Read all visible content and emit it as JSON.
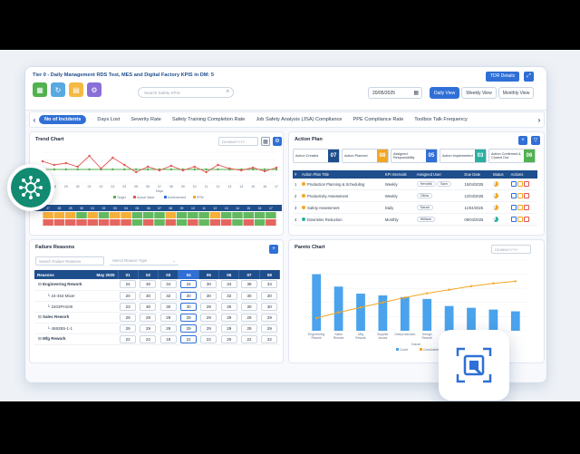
{
  "header": {
    "title": "Tier 0 - Daily Management RDS Test, MES and Digital Factory KPIS in DM: 5",
    "search_placeholder": "Search Safety KPIS",
    "date": "20/05/2025",
    "tdr_label": "TDR Details",
    "views": [
      "Daily View",
      "Weekly View",
      "Monthly View"
    ],
    "active_view": "Daily View",
    "quick_icons": [
      "grid-icon",
      "flow-icon",
      "document-icon",
      "gear-icon"
    ]
  },
  "kpi_tabs": [
    "No of Incidents",
    "Days Lost",
    "Severity Rate",
    "Safety Training Completion Rate",
    "Job Safety Analysis (JSA) Compliance",
    "PPE Compliance Rate",
    "Toolbox Talk Frequency"
  ],
  "trend": {
    "title": "Trend Chart",
    "date_placeholder": "DD/MM/YYYY",
    "x": [
      "27",
      "28",
      "29",
      "30",
      "01",
      "02",
      "03",
      "04",
      "05",
      "06",
      "07",
      "08",
      "09",
      "10",
      "11",
      "12",
      "13",
      "14",
      "15",
      "16",
      "17"
    ],
    "target": [
      15,
      15,
      15,
      15,
      15,
      15,
      15,
      15,
      15,
      15,
      15,
      15,
      15,
      15,
      15,
      15,
      15,
      15,
      15,
      15,
      15
    ],
    "actual": [
      24,
      20,
      22,
      18,
      30,
      16,
      28,
      20,
      12,
      18,
      14,
      19,
      14,
      18,
      12,
      20,
      16,
      14,
      17,
      13,
      17
    ],
    "legend": [
      "Target",
      "Actual Value",
      "Achievement",
      "PPM"
    ],
    "xlabel": "Days"
  },
  "action_plan": {
    "title": "Action Plan",
    "status_boxes": [
      {
        "label": "Action Created",
        "count": "07",
        "color": "#1f4e8c"
      },
      {
        "label": "Action Planned",
        "count": "08",
        "color": "#f5a623"
      },
      {
        "label": "Assigned Responsibility",
        "count": "05",
        "color": "#2f6fd6"
      },
      {
        "label": "Action Implemented",
        "count": "03",
        "color": "#2bb0a0"
      },
      {
        "label": "Action Confirmed & Closed Out",
        "count": "06",
        "color": "#52b14f"
      }
    ],
    "columns": [
      "#",
      "Action Plan Title",
      "KPI Intervals",
      "Assigned User",
      "Due Date",
      "Status",
      "Actions"
    ],
    "rows": [
      {
        "no": "1",
        "title": "Production Planning & Scheduling",
        "interval": "Weekly",
        "users": [
          "Hendrik",
          "Sam"
        ],
        "due": "15/04/2025",
        "color": "#f5a623"
      },
      {
        "no": "2",
        "title": "Productivity Assessment",
        "interval": "Weekly",
        "users": [
          "Olivia"
        ],
        "due": "12/04/2025",
        "color": "#f5a623"
      },
      {
        "no": "3",
        "title": "Safety Assessment",
        "interval": "Daily",
        "users": [
          "Sarah"
        ],
        "due": "11/04/2025",
        "color": "#f5a623"
      },
      {
        "no": "4",
        "title": "Downtime Reduction",
        "interval": "Monthly",
        "users": [
          "William"
        ],
        "due": "09/04/2025",
        "color": "#2bb0a0"
      }
    ]
  },
  "failure": {
    "title": "Failure Reasons",
    "search_placeholder": "Search Failure Reasons",
    "select_placeholder": "Select Reason Type",
    "header_label": "Reasons",
    "month": "May 2025",
    "days": [
      "01",
      "02",
      "03",
      "04",
      "05",
      "06",
      "07",
      "08"
    ],
    "rows": [
      {
        "label": "Engineering Rework",
        "values": [
          "24",
          "30",
          "34",
          "34",
          "30",
          "34",
          "38",
          "34"
        ]
      },
      {
        "label": "24-454 Mixer",
        "values": [
          "20",
          "30",
          "32",
          "30",
          "30",
          "32",
          "30",
          "30"
        ]
      },
      {
        "label": "2403PH100",
        "values": [
          "23",
          "30",
          "30",
          "30",
          "29",
          "30",
          "30",
          "30"
        ]
      },
      {
        "label": "Sales Rework",
        "values": [
          "29",
          "29",
          "29",
          "29",
          "29",
          "29",
          "29",
          "29"
        ]
      },
      {
        "label": "4692B5-1-1",
        "values": [
          "29",
          "29",
          "29",
          "29",
          "29",
          "29",
          "29",
          "29"
        ]
      },
      {
        "label": "Mfg Rework",
        "values": [
          "22",
          "22",
          "18",
          "22",
          "22",
          "20",
          "22",
          "22"
        ]
      }
    ]
  },
  "pareto": {
    "title": "Pareto Chart",
    "date_placeholder": "DD/MM/YYYY"
  },
  "chart_data": [
    {
      "type": "line",
      "x": [
        "27",
        "28",
        "29",
        "30",
        "01",
        "02",
        "03",
        "04",
        "05",
        "06",
        "07",
        "08",
        "09",
        "10",
        "11",
        "12",
        "13",
        "14",
        "15",
        "16",
        "17"
      ],
      "series": [
        {
          "name": "Target",
          "values": [
            15,
            15,
            15,
            15,
            15,
            15,
            15,
            15,
            15,
            15,
            15,
            15,
            15,
            15,
            15,
            15,
            15,
            15,
            15,
            15,
            15
          ]
        },
        {
          "name": "Actual Value",
          "values": [
            24,
            20,
            22,
            18,
            30,
            16,
            28,
            20,
            12,
            18,
            14,
            19,
            14,
            18,
            12,
            20,
            16,
            14,
            17,
            13,
            17
          ]
        }
      ],
      "xlabel": "Days"
    },
    {
      "type": "bar",
      "categories": [
        "Engineering Rework",
        "Sales Rework",
        "Mfg Rework",
        "Supplier Issues",
        "Overproduction",
        "Design Rework",
        "",
        "",
        "",
        ""
      ],
      "values": [
        32,
        25,
        21,
        20,
        19,
        18,
        14,
        13,
        12,
        11
      ],
      "cumulative": [
        18,
        26,
        33,
        40,
        47,
        53,
        58,
        63,
        67,
        70
      ],
      "xlabel": "Cause",
      "legend": [
        "Count",
        "Cumulative %"
      ]
    }
  ]
}
